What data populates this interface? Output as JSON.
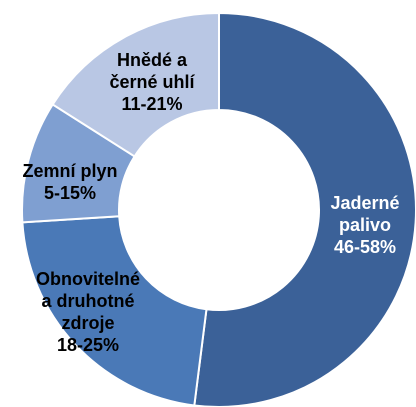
{
  "chart_data": {
    "type": "donut",
    "categories": [
      "Jaderné\npalivo",
      "Obnovitelné\na druhotné\nzdroje",
      "Zemní plyn",
      "Hnědé a\nčerné uhlí"
    ],
    "values": [
      52,
      22,
      10,
      16
    ],
    "value_labels": [
      "46-58%",
      "18-25%",
      "5-15%",
      "11-21%"
    ],
    "colors": [
      "#3b6198",
      "#4a79b7",
      "#7f9fd1",
      "#b9c7e4"
    ]
  }
}
